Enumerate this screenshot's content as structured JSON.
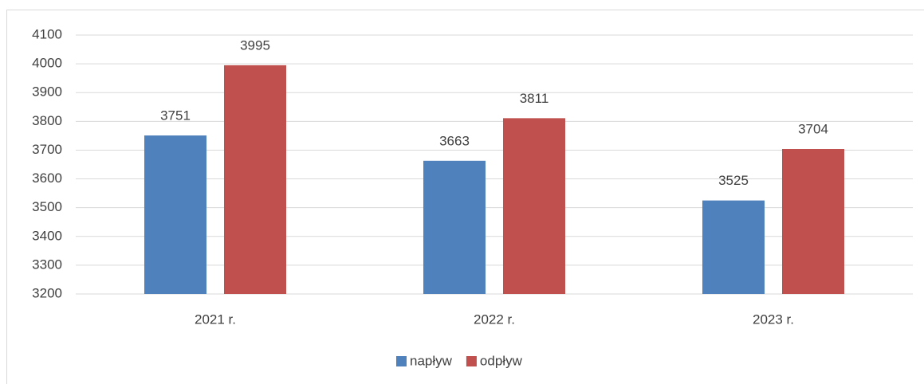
{
  "chart_data": {
    "type": "bar",
    "categories": [
      "2021 r.",
      "2022 r.",
      "2023 r."
    ],
    "series": [
      {
        "name": "napływ",
        "color": "#4f81bd",
        "values": [
          3751,
          3663,
          3525
        ]
      },
      {
        "name": "odpływ",
        "color": "#c0504d",
        "values": [
          3995,
          3811,
          3704
        ]
      }
    ],
    "ylim": [
      3200,
      4100
    ],
    "yticks": [
      3200,
      3300,
      3400,
      3500,
      3600,
      3700,
      3800,
      3900,
      4000,
      4100
    ],
    "grid": true,
    "legend": "bottom"
  }
}
